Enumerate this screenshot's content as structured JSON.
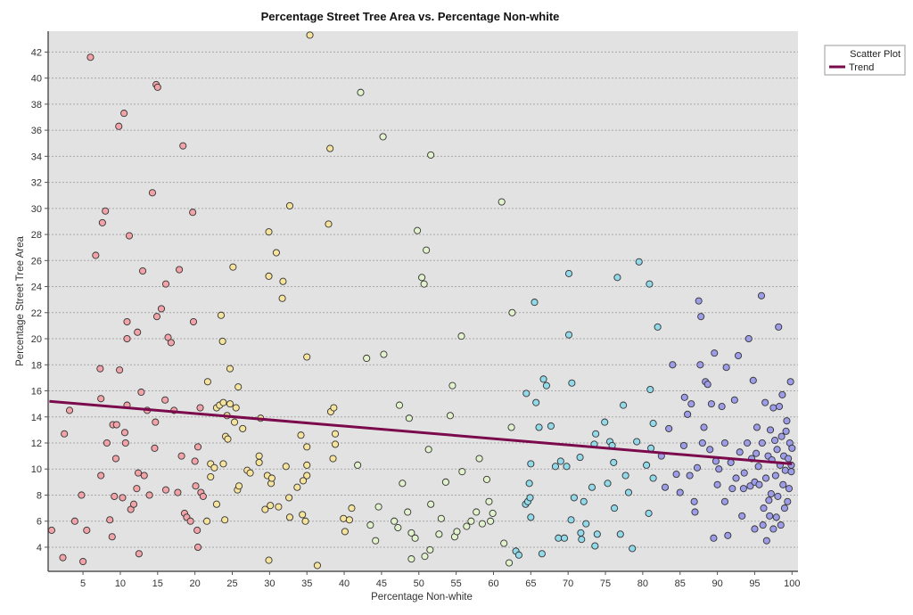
{
  "chart_data": {
    "type": "scatter",
    "title": "Percentage Street Tree Area vs. Percentage Non-white",
    "xlabel": "Percentage Non-white",
    "ylabel": "Percentage Street Tree Area",
    "xlim": [
      0.33,
      100.8
    ],
    "ylim": [
      2.15,
      43.6
    ],
    "xticks": [
      5,
      10,
      15,
      20,
      25,
      30,
      35,
      40,
      45,
      50,
      55,
      60,
      65,
      70,
      75,
      80,
      85,
      90,
      95,
      100
    ],
    "yticks": [
      4,
      6,
      8,
      10,
      12,
      14,
      16,
      18,
      20,
      22,
      24,
      26,
      28,
      30,
      32,
      34,
      36,
      38,
      40,
      42
    ],
    "grid": "horizontal",
    "legend": {
      "placement": "outside-top-right",
      "entries": [
        "Scatter Plot",
        "Trend"
      ]
    },
    "colors": {
      "background": "#e2e2e2",
      "trend": "#7a0a4c",
      "bins": [
        "#f2a3a8",
        "#f6e39c",
        "#e2f2cc",
        "#92d9ea",
        "#9d9ce8"
      ]
    },
    "color_bin_edges": [
      21.3,
      41.7,
      62.6,
      82.3
    ],
    "trend": {
      "x": [
        0.5,
        100
      ],
      "y": [
        15.2,
        10.4
      ]
    },
    "points": [
      [
        0.8,
        5.3
      ],
      [
        2.3,
        3.2
      ],
      [
        2.5,
        12.7
      ],
      [
        3.2,
        14.5
      ],
      [
        3.9,
        6.0
      ],
      [
        4.8,
        8.0
      ],
      [
        5,
        2.9
      ],
      [
        5.5,
        5.3
      ],
      [
        6,
        41.6
      ],
      [
        6.7,
        26.4
      ],
      [
        7.3,
        17.7
      ],
      [
        7.4,
        15.4
      ],
      [
        7.6,
        28.9
      ],
      [
        7.4,
        9.5
      ],
      [
        8,
        29.8
      ],
      [
        8.2,
        12.0
      ],
      [
        8.6,
        6.1
      ],
      [
        8.9,
        4.8
      ],
      [
        9,
        13.4
      ],
      [
        9.2,
        7.9
      ],
      [
        9.4,
        10.8
      ],
      [
        9.5,
        13.4
      ],
      [
        9.8,
        36.3
      ],
      [
        9.9,
        17.6
      ],
      [
        10.3,
        7.8
      ],
      [
        10.5,
        37.3
      ],
      [
        10.6,
        12.8
      ],
      [
        10.7,
        12.0
      ],
      [
        10.9,
        14.9
      ],
      [
        10.9,
        20.0
      ],
      [
        10.9,
        21.3
      ],
      [
        11.2,
        27.9
      ],
      [
        11.4,
        6.9
      ],
      [
        11.8,
        7.3
      ],
      [
        12.2,
        8.5
      ],
      [
        12.3,
        20.5
      ],
      [
        12.5,
        3.5
      ],
      [
        12.4,
        9.7
      ],
      [
        12.8,
        15.9
      ],
      [
        13,
        25.2
      ],
      [
        13.2,
        9.5
      ],
      [
        13.6,
        14.5
      ],
      [
        13.9,
        8.0
      ],
      [
        14.3,
        31.2
      ],
      [
        14.6,
        11.6
      ],
      [
        14.8,
        39.5
      ],
      [
        14.7,
        13.6
      ],
      [
        15,
        39.3
      ],
      [
        14.9,
        21.7
      ],
      [
        15.5,
        22.3
      ],
      [
        16,
        15.3
      ],
      [
        16.1,
        24.2
      ],
      [
        16.1,
        8.4
      ],
      [
        16.4,
        20.1
      ],
      [
        16.8,
        19.7
      ],
      [
        17.2,
        14.5
      ],
      [
        17.7,
        8.2
      ],
      [
        17.9,
        25.3
      ],
      [
        18.2,
        11.0
      ],
      [
        18.4,
        34.8
      ],
      [
        18.6,
        6.6
      ],
      [
        18.9,
        6.3
      ],
      [
        19.4,
        6.0
      ],
      [
        19.7,
        29.7
      ],
      [
        19.8,
        21.3
      ],
      [
        20,
        10.6
      ],
      [
        20.1,
        8.7
      ],
      [
        20.3,
        5.3
      ],
      [
        20.4,
        4.0
      ],
      [
        20.4,
        11.7
      ],
      [
        20.7,
        14.7
      ],
      [
        20.8,
        8.2
      ],
      [
        21.1,
        7.9
      ],
      [
        21.6,
        6.0
      ],
      [
        21.7,
        16.7
      ],
      [
        22.1,
        9.4
      ],
      [
        22.1,
        10.4
      ],
      [
        22.6,
        10.1
      ],
      [
        22.9,
        7.3
      ],
      [
        22.9,
        14.7
      ],
      [
        23.3,
        14.9
      ],
      [
        23.5,
        21.8
      ],
      [
        23.7,
        19.8
      ],
      [
        23.8,
        15.1
      ],
      [
        23.8,
        10.4
      ],
      [
        24,
        6.1
      ],
      [
        24.1,
        12.5
      ],
      [
        24.3,
        14.1
      ],
      [
        24.4,
        12.3
      ],
      [
        24.7,
        15.0
      ],
      [
        24.7,
        17.7
      ],
      [
        25.1,
        25.5
      ],
      [
        25.3,
        13.6
      ],
      [
        25.5,
        14.7
      ],
      [
        25.7,
        8.4
      ],
      [
        25.8,
        16.3
      ],
      [
        25.9,
        8.7
      ],
      [
        26.4,
        13.1
      ],
      [
        27,
        9.9
      ],
      [
        27.4,
        9.7
      ],
      [
        28.6,
        11.0
      ],
      [
        28.6,
        10.5
      ],
      [
        28.8,
        13.9
      ],
      [
        29.4,
        6.9
      ],
      [
        29.7,
        9.5
      ],
      [
        29.9,
        24.8
      ],
      [
        29.9,
        28.2
      ],
      [
        29.9,
        3.0
      ],
      [
        30.1,
        7.2
      ],
      [
        30.2,
        8.9
      ],
      [
        30.3,
        9.3
      ],
      [
        30.9,
        26.6
      ],
      [
        31.2,
        7.1
      ],
      [
        31.8,
        24.4
      ],
      [
        31.7,
        23.1
      ],
      [
        32.2,
        10.2
      ],
      [
        32.6,
        7.8
      ],
      [
        32.7,
        6.3
      ],
      [
        32.7,
        30.2
      ],
      [
        33.7,
        8.6
      ],
      [
        34.2,
        12.6
      ],
      [
        34.4,
        6.5
      ],
      [
        34.5,
        9.1
      ],
      [
        34.8,
        6.0
      ],
      [
        35,
        18.6
      ],
      [
        35,
        10.3
      ],
      [
        35,
        11.7
      ],
      [
        35.4,
        43.3
      ],
      [
        35,
        9.5
      ],
      [
        36.4,
        2.6
      ],
      [
        37.9,
        28.8
      ],
      [
        38.1,
        34.6
      ],
      [
        38.2,
        14.4
      ],
      [
        38.5,
        10.8
      ],
      [
        38.6,
        14.7
      ],
      [
        38.8,
        12.7
      ],
      [
        38.8,
        11.9
      ],
      [
        39.9,
        6.2
      ],
      [
        40.1,
        5.2
      ],
      [
        40.7,
        6.1
      ],
      [
        41,
        7.0
      ],
      [
        41.8,
        10.3
      ],
      [
        42.2,
        38.9
      ],
      [
        43,
        18.5
      ],
      [
        43.5,
        5.7
      ],
      [
        44.2,
        4.5
      ],
      [
        44.6,
        7.1
      ],
      [
        45.3,
        18.8
      ],
      [
        45.2,
        35.5
      ],
      [
        46.7,
        6.0
      ],
      [
        47.2,
        5.5
      ],
      [
        47.4,
        14.9
      ],
      [
        47.8,
        8.9
      ],
      [
        48.5,
        6.7
      ],
      [
        48.7,
        13.9
      ],
      [
        49,
        3.1
      ],
      [
        49,
        5.1
      ],
      [
        49.5,
        4.7
      ],
      [
        49.8,
        28.3
      ],
      [
        50.4,
        24.7
      ],
      [
        50.7,
        24.2
      ],
      [
        50.8,
        3.3
      ],
      [
        51,
        26.8
      ],
      [
        51.3,
        11.5
      ],
      [
        51.5,
        3.8
      ],
      [
        51.6,
        34.1
      ],
      [
        51.6,
        7.3
      ],
      [
        52.7,
        5.0
      ],
      [
        53,
        6.2
      ],
      [
        53.6,
        9.0
      ],
      [
        54.2,
        14.1
      ],
      [
        54.5,
        16.4
      ],
      [
        54.8,
        4.8
      ],
      [
        55.1,
        5.2
      ],
      [
        55.7,
        20.2
      ],
      [
        55.8,
        9.8
      ],
      [
        56.4,
        5.6
      ],
      [
        57,
        6.0
      ],
      [
        57.7,
        6.7
      ],
      [
        58.1,
        10.8
      ],
      [
        58.5,
        5.8
      ],
      [
        59.1,
        9.2
      ],
      [
        59.4,
        7.5
      ],
      [
        59.9,
        6.6
      ],
      [
        59.6,
        6.0
      ],
      [
        61.1,
        30.5
      ],
      [
        61.4,
        4.3
      ],
      [
        62.1,
        2.8
      ],
      [
        62.5,
        22.0
      ],
      [
        62.4,
        13.2
      ],
      [
        63,
        3.7
      ],
      [
        63.4,
        3.4
      ],
      [
        64.3,
        7.3
      ],
      [
        64.4,
        15.8
      ],
      [
        64.6,
        7.5
      ],
      [
        64.8,
        8.9
      ],
      [
        64.9,
        7.8
      ],
      [
        65,
        10.4
      ],
      [
        65,
        6.3
      ],
      [
        65.5,
        22.8
      ],
      [
        65.7,
        15.1
      ],
      [
        66.1,
        13.2
      ],
      [
        66.5,
        3.5
      ],
      [
        66.7,
        16.9
      ],
      [
        67.1,
        16.4
      ],
      [
        67.7,
        13.3
      ],
      [
        68.3,
        10.2
      ],
      [
        68.7,
        4.7
      ],
      [
        69,
        10.6
      ],
      [
        69.5,
        4.7
      ],
      [
        69.8,
        10.2
      ],
      [
        70.1,
        20.3
      ],
      [
        70.1,
        25.0
      ],
      [
        70.4,
        6.1
      ],
      [
        70.5,
        16.6
      ],
      [
        70.8,
        7.8
      ],
      [
        71.6,
        10.9
      ],
      [
        71.7,
        5.1
      ],
      [
        71.8,
        4.6
      ],
      [
        72.1,
        7.5
      ],
      [
        72.4,
        5.8
      ],
      [
        73.2,
        8.6
      ],
      [
        73.5,
        11.9
      ],
      [
        73.6,
        4.1
      ],
      [
        73.7,
        12.7
      ],
      [
        73.9,
        5.0
      ],
      [
        74.9,
        13.6
      ],
      [
        75.3,
        8.9
      ],
      [
        75.6,
        12.1
      ],
      [
        75.9,
        11.8
      ],
      [
        76.2,
        7.0
      ],
      [
        76.1,
        10.5
      ],
      [
        76.6,
        24.7
      ],
      [
        77,
        5.0
      ],
      [
        77.4,
        14.9
      ],
      [
        77.7,
        9.5
      ],
      [
        78.1,
        8.2
      ],
      [
        78.6,
        3.9
      ],
      [
        79.2,
        12.1
      ],
      [
        79.5,
        25.9
      ],
      [
        80.5,
        10.3
      ],
      [
        80.8,
        6.6
      ],
      [
        80.9,
        24.2
      ],
      [
        81,
        16.1
      ],
      [
        81.1,
        11.6
      ],
      [
        81.4,
        13.5
      ],
      [
        81.4,
        9.3
      ],
      [
        82,
        20.9
      ],
      [
        82.5,
        11.0
      ],
      [
        83,
        8.6
      ],
      [
        83.5,
        13.1
      ],
      [
        84,
        18.0
      ],
      [
        84.5,
        9.6
      ],
      [
        85,
        8.2
      ],
      [
        85.5,
        11.8
      ],
      [
        85.6,
        15.5
      ],
      [
        86,
        14.2
      ],
      [
        86.3,
        9.5
      ],
      [
        86.5,
        15.0
      ],
      [
        86.9,
        7.5
      ],
      [
        87,
        6.7
      ],
      [
        87.3,
        10.1
      ],
      [
        87.5,
        22.9
      ],
      [
        87.7,
        18.0
      ],
      [
        87.8,
        21.7
      ],
      [
        88,
        12.0
      ],
      [
        88.2,
        13.2
      ],
      [
        88.4,
        16.7
      ],
      [
        88.7,
        16.5
      ],
      [
        89,
        11.5
      ],
      [
        89.2,
        15.0
      ],
      [
        89.5,
        4.7
      ],
      [
        89.6,
        18.9
      ],
      [
        89.8,
        10.6
      ],
      [
        90,
        8.8
      ],
      [
        90.2,
        10.0
      ],
      [
        90.6,
        14.8
      ],
      [
        91,
        7.5
      ],
      [
        91,
        12.0
      ],
      [
        91.2,
        17.8
      ],
      [
        91.4,
        4.9
      ],
      [
        91.8,
        10.5
      ],
      [
        92,
        8.5
      ],
      [
        92.3,
        15.3
      ],
      [
        92.5,
        9.3
      ],
      [
        92.8,
        18.7
      ],
      [
        93,
        11.3
      ],
      [
        93.3,
        6.4
      ],
      [
        93.5,
        8.5
      ],
      [
        93.6,
        9.7
      ],
      [
        94,
        12.0
      ],
      [
        94.2,
        20.0
      ],
      [
        94.4,
        8.7
      ],
      [
        94.6,
        10.8
      ],
      [
        94.8,
        16.8
      ],
      [
        95,
        5.4
      ],
      [
        95,
        9.0
      ],
      [
        95.2,
        11.2
      ],
      [
        95.3,
        13.2
      ],
      [
        95.5,
        10.2
      ],
      [
        95.6,
        8.8
      ],
      [
        95.9,
        23.3
      ],
      [
        96,
        12.0
      ],
      [
        96.1,
        5.7
      ],
      [
        96.2,
        7.0
      ],
      [
        96.4,
        15.1
      ],
      [
        96.5,
        9.3
      ],
      [
        96.6,
        4.5
      ],
      [
        96.8,
        11.0
      ],
      [
        96.9,
        7.6
      ],
      [
        97,
        6.4
      ],
      [
        97.1,
        13.0
      ],
      [
        97.2,
        8.1
      ],
      [
        97.3,
        10.7
      ],
      [
        97.5,
        5.4
      ],
      [
        97.5,
        14.7
      ],
      [
        97.7,
        12.2
      ],
      [
        97.8,
        9.5
      ],
      [
        97.9,
        6.3
      ],
      [
        98,
        11.5
      ],
      [
        98.1,
        7.9
      ],
      [
        98.2,
        20.9
      ],
      [
        98.3,
        14.8
      ],
      [
        98.4,
        10.3
      ],
      [
        98.5,
        5.7
      ],
      [
        98.6,
        12.5
      ],
      [
        98.7,
        15.7
      ],
      [
        98.8,
        8.8
      ],
      [
        98.9,
        11.0
      ],
      [
        99,
        7.0
      ],
      [
        99.1,
        9.9
      ],
      [
        99.2,
        12.9
      ],
      [
        99.3,
        13.7
      ],
      [
        99.5,
        10.8
      ],
      [
        99.6,
        8.5
      ],
      [
        99.7,
        12.0
      ],
      [
        99.8,
        16.7
      ],
      [
        99.9,
        9.8
      ],
      [
        100,
        11.6
      ],
      [
        99.9,
        10.3
      ],
      [
        99.4,
        7.5
      ]
    ]
  }
}
